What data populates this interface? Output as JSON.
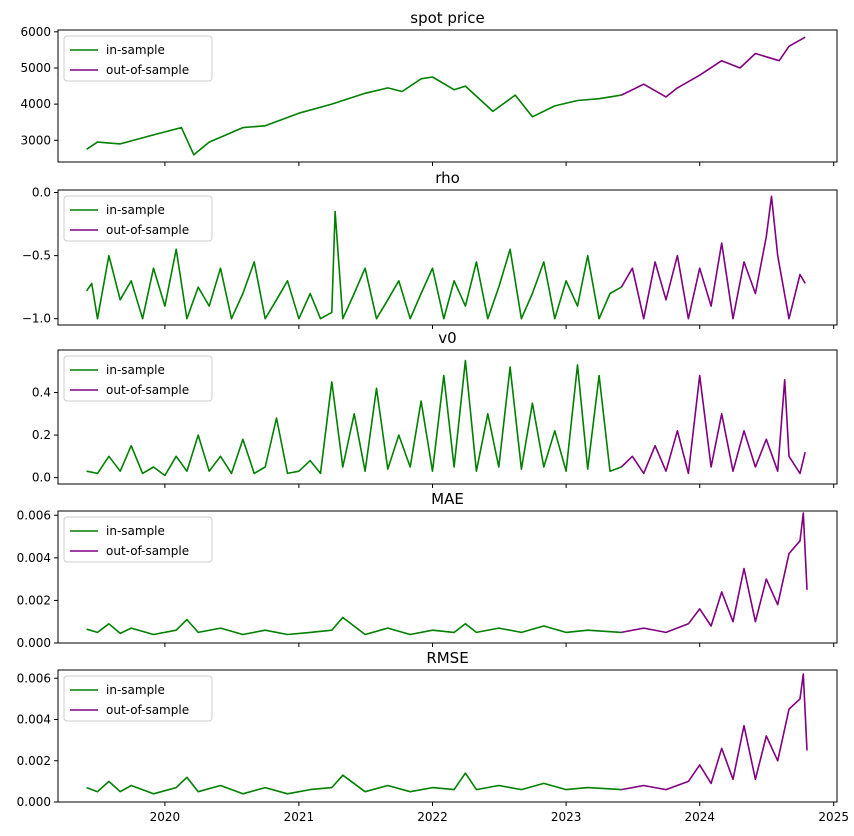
{
  "colors": {
    "in_sample": "#008000",
    "out_of_sample": "#800080"
  },
  "chart_data": [
    {
      "type": "line",
      "title": "spot price",
      "ylim": [
        2400,
        6050
      ],
      "yticks": [
        3000,
        4000,
        5000,
        6000
      ],
      "ytick_labels": [
        "3000",
        "4000",
        "5000",
        "6000"
      ],
      "legend": "top-left",
      "legend_labels": [
        "in-sample",
        "out-of-sample"
      ],
      "series": [
        {
          "name": "in-sample",
          "color": "#008000",
          "x": [
            "2019-06-01",
            "2019-07-01",
            "2019-09-01",
            "2019-12-01",
            "2020-02-15",
            "2020-03-20",
            "2020-05-01",
            "2020-08-01",
            "2020-10-01",
            "2021-01-01",
            "2021-04-01",
            "2021-07-01",
            "2021-09-01",
            "2021-10-10",
            "2021-12-01",
            "2022-01-01",
            "2022-03-01",
            "2022-04-01",
            "2022-06-15",
            "2022-08-15",
            "2022-10-01",
            "2022-12-01",
            "2023-02-01",
            "2023-04-01",
            "2023-06-01"
          ],
          "y": [
            2750,
            2950,
            2900,
            3150,
            3350,
            2600,
            2950,
            3350,
            3400,
            3750,
            4000,
            4300,
            4450,
            4350,
            4700,
            4750,
            4400,
            4500,
            3800,
            4250,
            3650,
            3950,
            4100,
            4150,
            4250
          ]
        },
        {
          "name": "out-of-sample",
          "color": "#800080",
          "x": [
            "2023-06-01",
            "2023-08-01",
            "2023-10-01",
            "2023-11-01",
            "2024-01-01",
            "2024-03-01",
            "2024-04-20",
            "2024-06-01",
            "2024-08-05",
            "2024-09-01",
            "2024-10-15"
          ],
          "y": [
            4250,
            4550,
            4200,
            4450,
            4800,
            5200,
            5000,
            5400,
            5200,
            5600,
            5850
          ]
        }
      ]
    },
    {
      "type": "line",
      "title": "rho",
      "ylim": [
        -1.05,
        0.02
      ],
      "yticks": [
        -1.0,
        -0.5,
        0.0
      ],
      "ytick_labels": [
        "−1.0",
        "−0.5",
        "0.0"
      ],
      "legend": "top-left",
      "legend_labels": [
        "in-sample",
        "out-of-sample"
      ],
      "series": [
        {
          "name": "in-sample",
          "color": "#008000",
          "x": [
            "2019-06-01",
            "2019-06-15",
            "2019-07-01",
            "2019-08-01",
            "2019-09-01",
            "2019-10-01",
            "2019-11-01",
            "2019-12-01",
            "2020-01-01",
            "2020-02-01",
            "2020-03-01",
            "2020-04-01",
            "2020-05-01",
            "2020-06-01",
            "2020-07-01",
            "2020-08-01",
            "2020-09-01",
            "2020-10-01",
            "2020-11-01",
            "2020-12-01",
            "2021-01-01",
            "2021-02-01",
            "2021-03-01",
            "2021-04-01",
            "2021-04-10",
            "2021-05-01",
            "2021-06-01",
            "2021-07-01",
            "2021-08-01",
            "2021-09-01",
            "2021-10-01",
            "2021-11-01",
            "2021-12-01",
            "2022-01-01",
            "2022-02-01",
            "2022-03-01",
            "2022-04-01",
            "2022-05-01",
            "2022-06-01",
            "2022-07-01",
            "2022-08-01",
            "2022-09-01",
            "2022-10-01",
            "2022-11-01",
            "2022-12-01",
            "2023-01-01",
            "2023-02-01",
            "2023-03-01",
            "2023-04-01",
            "2023-05-01",
            "2023-06-01"
          ],
          "y": [
            -0.78,
            -0.72,
            -1.0,
            -0.5,
            -0.85,
            -0.7,
            -1.0,
            -0.6,
            -0.9,
            -0.45,
            -1.0,
            -0.75,
            -0.9,
            -0.6,
            -1.0,
            -0.8,
            -0.55,
            -1.0,
            -0.85,
            -0.7,
            -1.0,
            -0.8,
            -1.0,
            -0.95,
            -0.15,
            -1.0,
            -0.8,
            -0.6,
            -1.0,
            -0.85,
            -0.7,
            -1.0,
            -0.8,
            -0.6,
            -1.0,
            -0.7,
            -0.9,
            -0.55,
            -1.0,
            -0.75,
            -0.45,
            -1.0,
            -0.8,
            -0.55,
            -1.0,
            -0.7,
            -0.9,
            -0.5,
            -1.0,
            -0.8,
            -0.75
          ]
        },
        {
          "name": "out-of-sample",
          "color": "#800080",
          "x": [
            "2023-06-01",
            "2023-07-01",
            "2023-08-01",
            "2023-09-01",
            "2023-10-01",
            "2023-11-01",
            "2023-12-01",
            "2024-01-01",
            "2024-02-01",
            "2024-03-01",
            "2024-04-01",
            "2024-05-01",
            "2024-06-01",
            "2024-07-01",
            "2024-07-15",
            "2024-08-01",
            "2024-09-01",
            "2024-10-01",
            "2024-10-15"
          ],
          "y": [
            -0.75,
            -0.6,
            -1.0,
            -0.55,
            -0.85,
            -0.5,
            -1.0,
            -0.6,
            -0.9,
            -0.4,
            -1.0,
            -0.55,
            -0.8,
            -0.35,
            -0.03,
            -0.5,
            -1.0,
            -0.65,
            -0.72
          ]
        }
      ]
    },
    {
      "type": "line",
      "title": "v0",
      "ylim": [
        -0.03,
        0.6
      ],
      "yticks": [
        0.0,
        0.2,
        0.4
      ],
      "ytick_labels": [
        "0.0",
        "0.2",
        "0.4"
      ],
      "legend": "top-left",
      "legend_labels": [
        "in-sample",
        "out-of-sample"
      ],
      "series": [
        {
          "name": "in-sample",
          "color": "#008000",
          "x": [
            "2019-06-01",
            "2019-07-01",
            "2019-08-01",
            "2019-09-01",
            "2019-10-01",
            "2019-11-01",
            "2019-12-01",
            "2020-01-01",
            "2020-02-01",
            "2020-03-01",
            "2020-04-01",
            "2020-05-01",
            "2020-06-01",
            "2020-07-01",
            "2020-08-01",
            "2020-09-01",
            "2020-10-01",
            "2020-11-01",
            "2020-12-01",
            "2021-01-01",
            "2021-02-01",
            "2021-03-01",
            "2021-04-01",
            "2021-05-01",
            "2021-06-01",
            "2021-07-01",
            "2021-08-01",
            "2021-09-01",
            "2021-10-01",
            "2021-11-01",
            "2021-12-01",
            "2022-01-01",
            "2022-02-01",
            "2022-03-01",
            "2022-04-01",
            "2022-05-01",
            "2022-06-01",
            "2022-07-01",
            "2022-08-01",
            "2022-09-01",
            "2022-10-01",
            "2022-11-01",
            "2022-12-01",
            "2023-01-01",
            "2023-02-01",
            "2023-03-01",
            "2023-04-01",
            "2023-05-01",
            "2023-06-01"
          ],
          "y": [
            0.03,
            0.02,
            0.1,
            0.03,
            0.15,
            0.02,
            0.05,
            0.01,
            0.1,
            0.03,
            0.2,
            0.03,
            0.1,
            0.02,
            0.18,
            0.02,
            0.05,
            0.28,
            0.02,
            0.03,
            0.08,
            0.02,
            0.45,
            0.05,
            0.3,
            0.03,
            0.42,
            0.04,
            0.2,
            0.05,
            0.36,
            0.03,
            0.48,
            0.05,
            0.55,
            0.03,
            0.3,
            0.05,
            0.52,
            0.04,
            0.35,
            0.05,
            0.22,
            0.03,
            0.53,
            0.04,
            0.48,
            0.03,
            0.05
          ]
        },
        {
          "name": "out-of-sample",
          "color": "#800080",
          "x": [
            "2023-06-01",
            "2023-07-01",
            "2023-08-01",
            "2023-09-01",
            "2023-10-01",
            "2023-11-01",
            "2023-12-01",
            "2024-01-01",
            "2024-02-01",
            "2024-03-01",
            "2024-04-01",
            "2024-05-01",
            "2024-06-01",
            "2024-07-01",
            "2024-08-01",
            "2024-08-20",
            "2024-09-01",
            "2024-10-01",
            "2024-10-15"
          ],
          "y": [
            0.05,
            0.1,
            0.02,
            0.15,
            0.03,
            0.22,
            0.02,
            0.48,
            0.05,
            0.3,
            0.03,
            0.22,
            0.05,
            0.18,
            0.03,
            0.46,
            0.1,
            0.02,
            0.12
          ]
        }
      ]
    },
    {
      "type": "line",
      "title": "MAE",
      "ylim": [
        0.0,
        0.0062
      ],
      "yticks": [
        0.0,
        0.002,
        0.004,
        0.006
      ],
      "ytick_labels": [
        "0.000",
        "0.002",
        "0.004",
        "0.006"
      ],
      "legend": "top-left",
      "legend_labels": [
        "in-sample",
        "out-of-sample"
      ],
      "series": [
        {
          "name": "in-sample",
          "color": "#008000",
          "x": [
            "2019-06-01",
            "2019-07-01",
            "2019-08-01",
            "2019-09-01",
            "2019-10-01",
            "2019-12-01",
            "2020-02-01",
            "2020-03-01",
            "2020-04-01",
            "2020-06-01",
            "2020-08-01",
            "2020-10-01",
            "2020-12-01",
            "2021-02-01",
            "2021-04-01",
            "2021-05-01",
            "2021-07-01",
            "2021-09-01",
            "2021-11-01",
            "2022-01-01",
            "2022-03-01",
            "2022-04-01",
            "2022-05-01",
            "2022-07-01",
            "2022-09-01",
            "2022-11-01",
            "2023-01-01",
            "2023-03-01",
            "2023-06-01"
          ],
          "y": [
            0.00065,
            0.0005,
            0.0009,
            0.00045,
            0.0007,
            0.0004,
            0.0006,
            0.0011,
            0.0005,
            0.0007,
            0.0004,
            0.0006,
            0.0004,
            0.0005,
            0.0006,
            0.0012,
            0.0004,
            0.0007,
            0.0004,
            0.0006,
            0.0005,
            0.0009,
            0.0005,
            0.0007,
            0.0005,
            0.0008,
            0.0005,
            0.0006,
            0.0005
          ]
        },
        {
          "name": "out-of-sample",
          "color": "#800080",
          "x": [
            "2023-06-01",
            "2023-08-01",
            "2023-10-01",
            "2023-12-01",
            "2024-01-01",
            "2024-02-01",
            "2024-03-01",
            "2024-04-01",
            "2024-05-01",
            "2024-06-01",
            "2024-07-01",
            "2024-08-01",
            "2024-09-01",
            "2024-10-01",
            "2024-10-10",
            "2024-10-20"
          ],
          "y": [
            0.0005,
            0.0007,
            0.0005,
            0.0009,
            0.0016,
            0.0008,
            0.0024,
            0.001,
            0.0035,
            0.001,
            0.003,
            0.0018,
            0.0042,
            0.0048,
            0.0061,
            0.0025
          ]
        }
      ]
    },
    {
      "type": "line",
      "title": "RMSE",
      "ylim": [
        0.0,
        0.0064
      ],
      "yticks": [
        0.0,
        0.002,
        0.004,
        0.006
      ],
      "ytick_labels": [
        "0.000",
        "0.002",
        "0.004",
        "0.006"
      ],
      "xticks": [
        "2020-01-01",
        "2021-01-01",
        "2022-01-01",
        "2023-01-01",
        "2024-01-01",
        "2025-01-01"
      ],
      "xtick_labels": [
        "2020",
        "2021",
        "2022",
        "2023",
        "2024",
        "2025"
      ],
      "legend": "top-left",
      "legend_labels": [
        "in-sample",
        "out-of-sample"
      ],
      "series": [
        {
          "name": "in-sample",
          "color": "#008000",
          "x": [
            "2019-06-01",
            "2019-07-01",
            "2019-08-01",
            "2019-09-01",
            "2019-10-01",
            "2019-12-01",
            "2020-02-01",
            "2020-03-01",
            "2020-04-01",
            "2020-06-01",
            "2020-08-01",
            "2020-10-01",
            "2020-12-01",
            "2021-02-01",
            "2021-04-01",
            "2021-05-01",
            "2021-07-01",
            "2021-09-01",
            "2021-11-01",
            "2022-01-01",
            "2022-03-01",
            "2022-04-01",
            "2022-05-01",
            "2022-07-01",
            "2022-09-01",
            "2022-11-01",
            "2023-01-01",
            "2023-03-01",
            "2023-06-01"
          ],
          "y": [
            0.0007,
            0.0005,
            0.001,
            0.0005,
            0.0008,
            0.0004,
            0.0007,
            0.0012,
            0.0005,
            0.0008,
            0.0004,
            0.0007,
            0.0004,
            0.0006,
            0.0007,
            0.0013,
            0.0005,
            0.0008,
            0.0005,
            0.0007,
            0.0006,
            0.0014,
            0.0006,
            0.0008,
            0.0006,
            0.0009,
            0.0006,
            0.0007,
            0.0006
          ]
        },
        {
          "name": "out-of-sample",
          "color": "#800080",
          "x": [
            "2023-06-01",
            "2023-08-01",
            "2023-10-01",
            "2023-12-01",
            "2024-01-01",
            "2024-02-01",
            "2024-03-01",
            "2024-04-01",
            "2024-05-01",
            "2024-06-01",
            "2024-07-01",
            "2024-08-01",
            "2024-09-01",
            "2024-10-01",
            "2024-10-10",
            "2024-10-20"
          ],
          "y": [
            0.0006,
            0.0008,
            0.0006,
            0.001,
            0.0018,
            0.0009,
            0.0026,
            0.0011,
            0.0037,
            0.0011,
            0.0032,
            0.002,
            0.0045,
            0.005,
            0.0062,
            0.0025
          ]
        }
      ]
    }
  ]
}
